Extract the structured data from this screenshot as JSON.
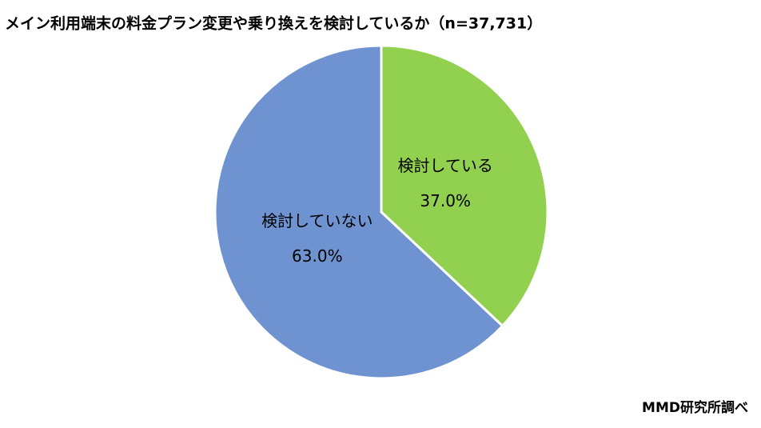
{
  "chart_data": {
    "type": "pie",
    "title": "メイン利用端末の料金プラン変更や乗り換えを検討しているか（n=37,731）",
    "categories": [
      "検討している",
      "検討していない"
    ],
    "values": [
      37.0,
      63.0
    ],
    "value_labels": [
      "37.0%",
      "63.0%"
    ],
    "colors": [
      "#92d050",
      "#6f93d1"
    ],
    "source": "MMD研究所調べ"
  }
}
